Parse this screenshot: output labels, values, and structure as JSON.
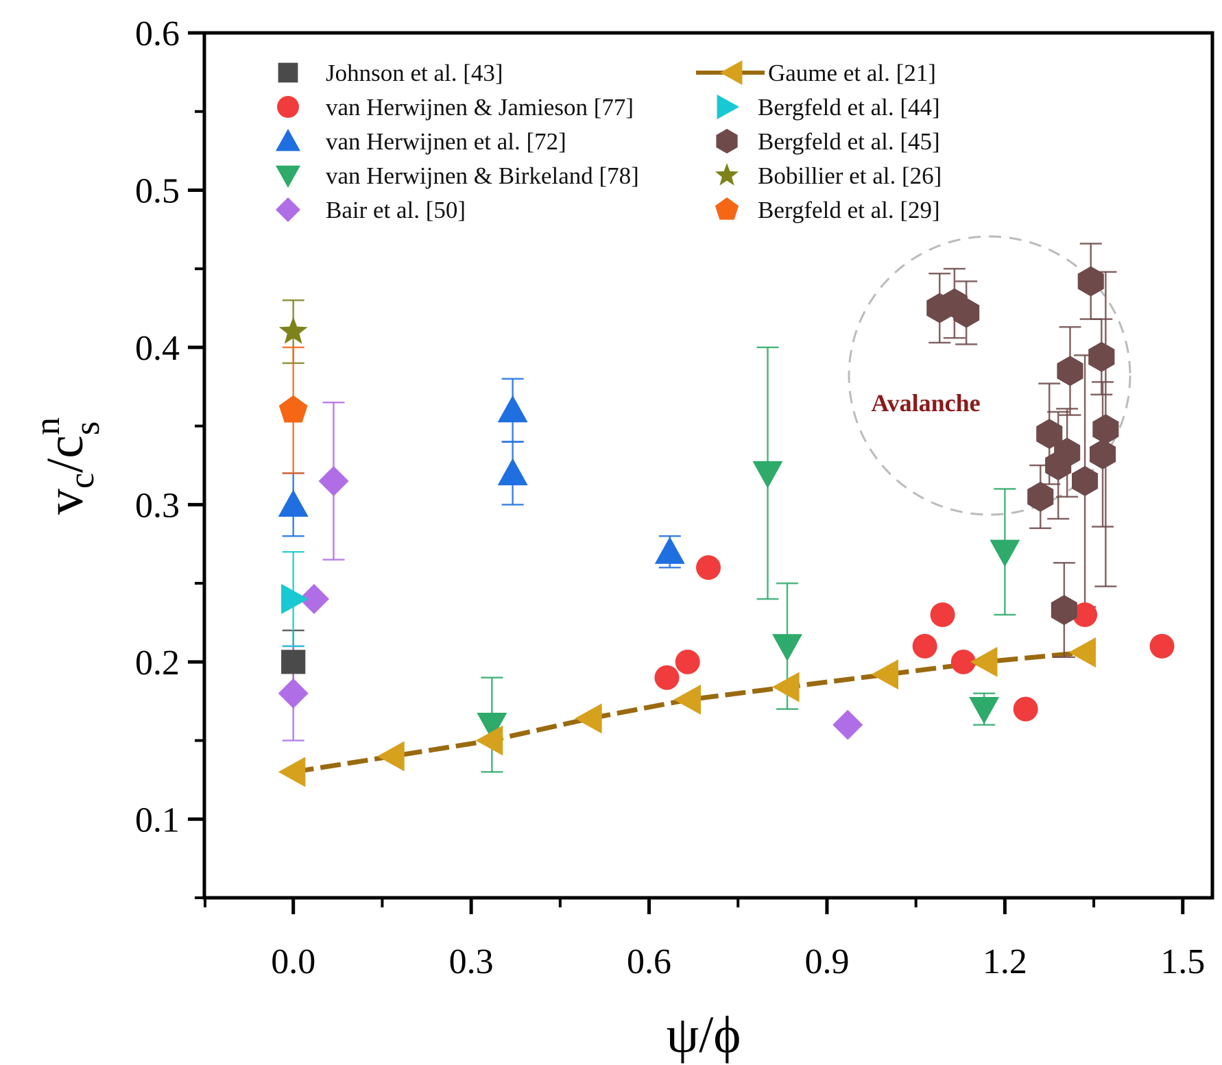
{
  "chart_data": {
    "type": "scatter",
    "xlabel": "ψ/ϕ",
    "ylabel_main": "v",
    "ylabel_sub1": "c",
    "ylabel_slash": "/c",
    "ylabel_sup": "n",
    "ylabel_sub2": "s",
    "xlim": [
      -0.15,
      1.55
    ],
    "ylim": [
      0.05,
      0.6
    ],
    "x_ticks": [
      "0.0",
      "0.3",
      "0.6",
      "0.9",
      "1.2",
      "1.5"
    ],
    "y_ticks": [
      "0.1",
      "0.2",
      "0.3",
      "0.4",
      "0.5",
      "0.6"
    ],
    "annotation": "Avalanche",
    "series": [
      {
        "name": "Johnson et al. [43]",
        "marker": "square",
        "color": "#4a4a4a",
        "points": [
          {
            "x": 0.0,
            "y": 0.2,
            "err": 0.02
          }
        ]
      },
      {
        "name": "van Herwijnen & Jamieson [77]",
        "marker": "circle",
        "color": "#f03c3c",
        "points": [
          {
            "x": 0.63,
            "y": 0.19
          },
          {
            "x": 0.665,
            "y": 0.2
          },
          {
            "x": 0.7,
            "y": 0.26
          },
          {
            "x": 1.065,
            "y": 0.21
          },
          {
            "x": 1.095,
            "y": 0.23
          },
          {
            "x": 1.13,
            "y": 0.2
          },
          {
            "x": 1.235,
            "y": 0.17
          },
          {
            "x": 1.335,
            "y": 0.23
          },
          {
            "x": 1.465,
            "y": 0.21
          }
        ]
      },
      {
        "name": "van Herwijnen et al. [72]",
        "marker": "triangle-up",
        "color": "#1f6fe0",
        "points": [
          {
            "x": 0.0,
            "y": 0.3,
            "err": 0.02
          },
          {
            "x": 0.37,
            "y": 0.36,
            "err": 0.02
          },
          {
            "x": 0.37,
            "y": 0.32,
            "err": 0.02
          },
          {
            "x": 0.635,
            "y": 0.27,
            "err": 0.01
          }
        ]
      },
      {
        "name": "van Herwijnen & Birkeland [78]",
        "marker": "triangle-down",
        "color": "#2eaa6a",
        "points": [
          {
            "x": 0.335,
            "y": 0.16,
            "err": 0.03
          },
          {
            "x": 0.8,
            "y": 0.32,
            "err": 0.08
          },
          {
            "x": 0.833,
            "y": 0.21,
            "err": 0.04
          },
          {
            "x": 1.165,
            "y": 0.17,
            "err": 0.01
          },
          {
            "x": 1.2,
            "y": 0.27,
            "err": 0.04
          }
        ]
      },
      {
        "name": "Bair et al. [50]",
        "marker": "diamond",
        "color": "#b06ee6",
        "points": [
          {
            "x": 0.0,
            "y": 0.18,
            "err": 0.03
          },
          {
            "x": 0.035,
            "y": 0.24
          },
          {
            "x": 0.068,
            "y": 0.315,
            "err": 0.05
          },
          {
            "x": 0.935,
            "y": 0.16
          }
        ]
      },
      {
        "name": "Gaume et al. [21]",
        "marker": "triangle-left-line",
        "color": "#d6a11c",
        "line_color": "#9a6a10",
        "points": [
          {
            "x": 0.0,
            "y": 0.13
          },
          {
            "x": 0.167,
            "y": 0.14
          },
          {
            "x": 0.333,
            "y": 0.15
          },
          {
            "x": 0.5,
            "y": 0.164
          },
          {
            "x": 0.667,
            "y": 0.176
          },
          {
            "x": 0.833,
            "y": 0.184
          },
          {
            "x": 1.0,
            "y": 0.192
          },
          {
            "x": 1.167,
            "y": 0.2
          },
          {
            "x": 1.333,
            "y": 0.206
          }
        ]
      },
      {
        "name": "Bergfeld et al. [44]",
        "marker": "triangle-right",
        "color": "#18c8d2",
        "points": [
          {
            "x": 0.0,
            "y": 0.24,
            "err": 0.03
          }
        ]
      },
      {
        "name": "Bergfeld et al. [45]",
        "marker": "hexagon",
        "color": "#6e4a4a",
        "points": [
          {
            "x": 1.09,
            "y": 0.425,
            "err": 0.022
          },
          {
            "x": 1.115,
            "y": 0.428,
            "err": 0.022
          },
          {
            "x": 1.135,
            "y": 0.422,
            "err": 0.02
          },
          {
            "x": 1.345,
            "y": 0.442,
            "err": 0.024
          },
          {
            "x": 1.363,
            "y": 0.394,
            "err": 0.024
          },
          {
            "x": 1.31,
            "y": 0.385,
            "err": 0.028
          },
          {
            "x": 1.275,
            "y": 0.345,
            "err": 0.032
          },
          {
            "x": 1.305,
            "y": 0.333,
            "err": 0.028
          },
          {
            "x": 1.37,
            "y": 0.348,
            "err": 0.1
          },
          {
            "x": 1.29,
            "y": 0.325,
            "err": 0.034
          },
          {
            "x": 1.335,
            "y": 0.315,
            "err": 0.08
          },
          {
            "x": 1.365,
            "y": 0.332,
            "err": 0.046
          },
          {
            "x": 1.26,
            "y": 0.305,
            "err": 0.02
          },
          {
            "x": 1.3,
            "y": 0.233,
            "err": 0.03
          }
        ]
      },
      {
        "name": "Bobillier et al. [26]",
        "marker": "star",
        "color": "#7d8219",
        "points": [
          {
            "x": 0.0,
            "y": 0.41,
            "err": 0.02
          }
        ]
      },
      {
        "name": "Bergfeld et al. [29]",
        "marker": "pentagon",
        "color": "#f56714",
        "points": [
          {
            "x": 0.0,
            "y": 0.36,
            "err": 0.04
          }
        ]
      }
    ]
  }
}
